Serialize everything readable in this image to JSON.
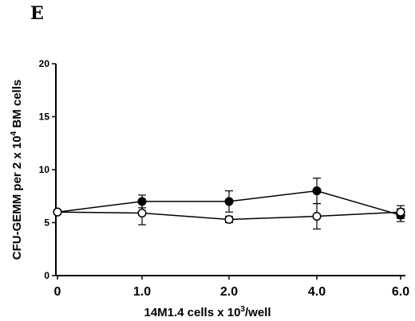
{
  "panel_label": "E",
  "chart_data": {
    "type": "line",
    "title": "",
    "panel": "E",
    "xlabel": {
      "text": "14M1.4 cells x 10",
      "superscript": "3",
      "suffix": "/well"
    },
    "ylabel": {
      "text": "CFU-GEMM per 2 x 10",
      "superscript": "4",
      "suffix": " BM cells"
    },
    "categories": [
      "0",
      "1.0",
      "2.0",
      "4.0",
      "6.0"
    ],
    "y_ticks": [
      "0",
      "5",
      "10",
      "15",
      "20"
    ],
    "ylim": [
      0,
      20
    ],
    "grid": false,
    "legend": "none",
    "series": [
      {
        "marker": "filled-circle",
        "color": "#000000",
        "values": [
          6.0,
          7.0,
          7.0,
          8.0,
          5.7
        ],
        "errors": [
          0.0,
          0.6,
          1.0,
          1.2,
          0.6
        ]
      },
      {
        "marker": "open-circle",
        "color": "#000000",
        "values": [
          6.0,
          5.9,
          5.3,
          5.6,
          6.0
        ],
        "errors": [
          0.0,
          1.1,
          0.3,
          1.2,
          0.6
        ]
      }
    ]
  }
}
